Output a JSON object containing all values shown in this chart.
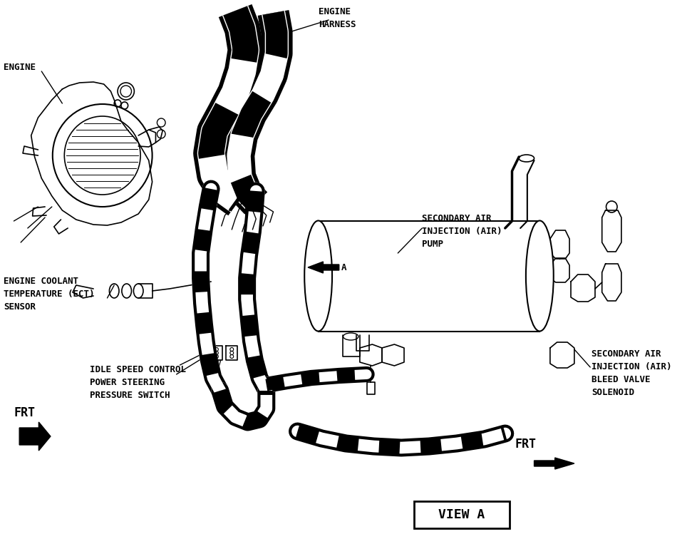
{
  "bg_color": "#ffffff",
  "line_color": "#000000",
  "fig_width": 9.64,
  "fig_height": 7.63,
  "dpi": 100,
  "labels": {
    "engine": "ENGINE",
    "engine_harness": "ENGINE\nHARNESS",
    "ect_sensor": "ENGINE COOLANT\nTEMPERATURE (ECT)\nSENSOR",
    "idle_speed": "IDLE SPEED CONTROL\nPOWER STEERING\nPRESSURE SWITCH",
    "sec_air_pump": "SECONDARY AIR\nINJECTION (AIR)\nPUMP",
    "sec_air_bleed": "SECONDARY AIR\nINJECTION (AIR)\nBLEED VALVE\nSOLENOID",
    "frt1": "FRT",
    "frt2": "FRT",
    "view_a": "VIEW A",
    "arrow_a": "A"
  },
  "font_size": 9,
  "font_family": "monospace"
}
